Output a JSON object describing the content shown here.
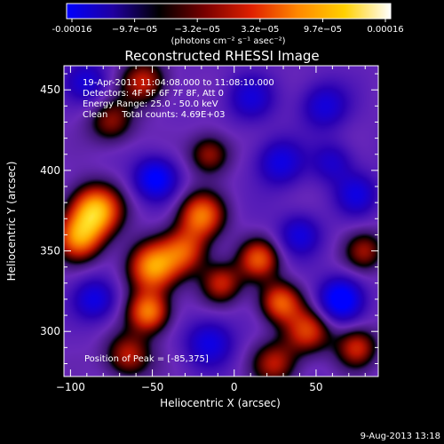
{
  "colorbar": {
    "tick_labels": [
      "-0.00016",
      "−9.7e−05",
      "−3.2e−05",
      "3.2e−05",
      "9.7e−05",
      "0.00016"
    ],
    "unit_label": "(photons cm⁻² s⁻¹ asec⁻²)",
    "range": [
      -0.00016,
      0.00016
    ],
    "stops": [
      "#0000ff",
      "#2000a0",
      "#000000",
      "#7a0000",
      "#e02000",
      "#ff8800",
      "#ffd000",
      "#ffffff"
    ]
  },
  "chart_data": {
    "type": "heatmap",
    "title": "Reconstructed RHESSI Image",
    "xlabel": "Heliocentric X (arcsec)",
    "ylabel": "Heliocentric Y (arcsec)",
    "xlim": [
      -104,
      88
    ],
    "ylim": [
      272,
      465
    ],
    "xticks": [
      -100,
      -50,
      0,
      50
    ],
    "xtick_labels": [
      "−100",
      "−50",
      "0",
      "50"
    ],
    "yticks": [
      300,
      350,
      400,
      450
    ],
    "ytick_labels": [
      "300",
      "350",
      "400",
      "450"
    ],
    "annotations": [
      "19-Apr-2011 11:04:08.000 to 11:08:10.000",
      "Detectors: 4F 5F 6F 7F 8F, Att 0",
      "Energy Range: 25.0 - 50.0 keV",
      "Clean     Total counts: 4.69E+03"
    ],
    "peak_label": "Position of Peak = [-85,375]",
    "peak": [
      -85,
      375
    ],
    "sources": [
      {
        "x": -85,
        "y": 375,
        "amp": 1.0,
        "sigma": 11
      },
      {
        "x": -95,
        "y": 358,
        "amp": 0.75,
        "sigma": 10
      },
      {
        "x": -50,
        "y": 340,
        "amp": 0.85,
        "sigma": 11
      },
      {
        "x": -52,
        "y": 312,
        "amp": 0.8,
        "sigma": 9
      },
      {
        "x": -65,
        "y": 285,
        "amp": 0.55,
        "sigma": 10
      },
      {
        "x": -20,
        "y": 372,
        "amp": 0.75,
        "sigma": 10
      },
      {
        "x": -30,
        "y": 350,
        "amp": 0.6,
        "sigma": 10
      },
      {
        "x": -8,
        "y": 330,
        "amp": 0.55,
        "sigma": 9
      },
      {
        "x": 15,
        "y": 345,
        "amp": 0.65,
        "sigma": 9
      },
      {
        "x": 28,
        "y": 318,
        "amp": 0.7,
        "sigma": 9
      },
      {
        "x": 45,
        "y": 300,
        "amp": 0.6,
        "sigma": 10
      },
      {
        "x": -55,
        "y": 455,
        "amp": 0.55,
        "sigma": 10
      },
      {
        "x": -75,
        "y": 430,
        "amp": 0.45,
        "sigma": 10
      },
      {
        "x": -15,
        "y": 410,
        "amp": 0.5,
        "sigma": 9
      },
      {
        "x": 25,
        "y": 280,
        "amp": 0.5,
        "sigma": 10
      },
      {
        "x": 75,
        "y": 290,
        "amp": 0.55,
        "sigma": 9
      },
      {
        "x": 80,
        "y": 350,
        "amp": 0.45,
        "sigma": 9
      },
      {
        "x": -48,
        "y": 395,
        "amp": -0.75,
        "sigma": 9
      },
      {
        "x": -85,
        "y": 320,
        "amp": -0.55,
        "sigma": 9
      },
      {
        "x": -15,
        "y": 293,
        "amp": -0.55,
        "sigma": 10
      },
      {
        "x": 55,
        "y": 440,
        "amp": -0.5,
        "sigma": 10
      },
      {
        "x": 28,
        "y": 405,
        "amp": -0.55,
        "sigma": 10
      },
      {
        "x": 65,
        "y": 320,
        "amp": -0.85,
        "sigma": 9
      },
      {
        "x": 40,
        "y": 360,
        "amp": -0.5,
        "sigma": 9
      },
      {
        "x": 75,
        "y": 385,
        "amp": -0.5,
        "sigma": 9
      },
      {
        "x": -90,
        "y": 455,
        "amp": -0.45,
        "sigma": 9
      },
      {
        "x": 10,
        "y": 445,
        "amp": -0.45,
        "sigma": 10
      },
      {
        "x": 60,
        "y": 405,
        "amp": -0.4,
        "sigma": 9
      }
    ]
  },
  "footer": {
    "timestamp": "9-Aug-2013 13:18"
  }
}
